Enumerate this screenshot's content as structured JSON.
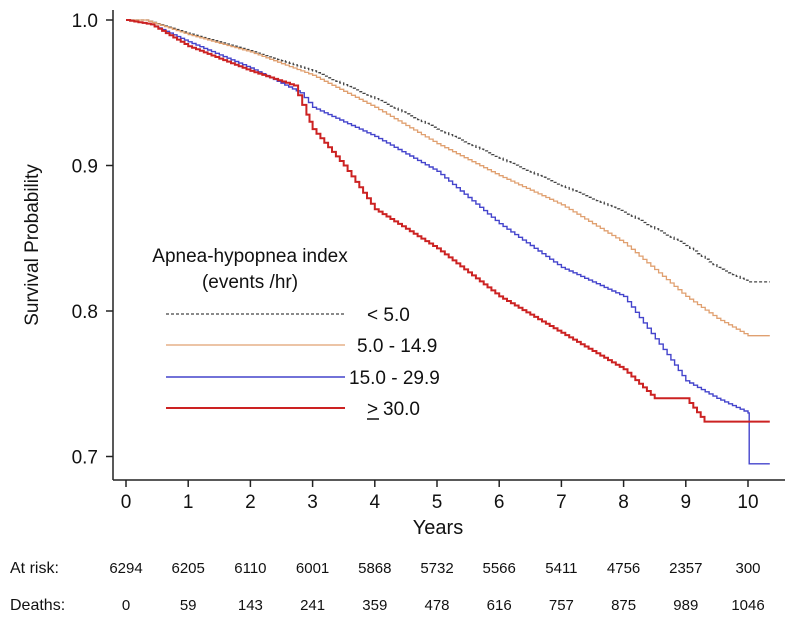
{
  "chart_data": {
    "type": "line",
    "xlabel": "Years",
    "ylabel": "Survival Probability",
    "xlim": [
      0,
      10.4
    ],
    "ylim": [
      0.7,
      1.0
    ],
    "x_ticks": [
      0,
      1,
      2,
      3,
      4,
      5,
      6,
      7,
      8,
      9,
      10
    ],
    "y_ticks": [
      {
        "value": 0.7,
        "label": "0.7"
      },
      {
        "value": 0.8,
        "label": "0.8"
      },
      {
        "value": 0.9,
        "label": "0.9"
      },
      {
        "value": 1.0,
        "label": "1.0"
      }
    ],
    "legend": {
      "title_line1": "Apnea-hypopnea index",
      "title_line2": "(events /hr)",
      "placement": "left"
    },
    "series": [
      {
        "name": "< 5.0",
        "color": "#444444",
        "style": "dashed",
        "points": [
          [
            0,
            1.0
          ],
          [
            0.3,
            1.0
          ],
          [
            1,
            0.991
          ],
          [
            2,
            0.979
          ],
          [
            3,
            0.965
          ],
          [
            4,
            0.946
          ],
          [
            5,
            0.925
          ],
          [
            6,
            0.905
          ],
          [
            7,
            0.886
          ],
          [
            8,
            0.868
          ],
          [
            9,
            0.845
          ],
          [
            9.5,
            0.83
          ],
          [
            10,
            0.82
          ],
          [
            10.35,
            0.82
          ]
        ]
      },
      {
        "name": "5.0 - 14.9",
        "color": "#e0a070",
        "style": "solid",
        "points": [
          [
            0,
            1.0
          ],
          [
            0.3,
            1.0
          ],
          [
            1,
            0.99
          ],
          [
            2,
            0.978
          ],
          [
            3,
            0.962
          ],
          [
            4,
            0.94
          ],
          [
            5,
            0.915
          ],
          [
            6,
            0.893
          ],
          [
            7,
            0.873
          ],
          [
            8,
            0.847
          ],
          [
            9,
            0.81
          ],
          [
            9.5,
            0.795
          ],
          [
            10,
            0.783
          ],
          [
            10.35,
            0.783
          ]
        ]
      },
      {
        "name": "15.0 - 29.9",
        "color": "#4444cc",
        "style": "solid",
        "points": [
          [
            0,
            1.0
          ],
          [
            0.4,
            0.997
          ],
          [
            1,
            0.985
          ],
          [
            2,
            0.967
          ],
          [
            2.8,
            0.95
          ],
          [
            3,
            0.94
          ],
          [
            4,
            0.92
          ],
          [
            5,
            0.896
          ],
          [
            6,
            0.86
          ],
          [
            7,
            0.83
          ],
          [
            8,
            0.81
          ],
          [
            8.7,
            0.77
          ],
          [
            9,
            0.752
          ],
          [
            9.5,
            0.74
          ],
          [
            10,
            0.73
          ],
          [
            10.02,
            0.695
          ],
          [
            10.35,
            0.695
          ]
        ]
      },
      {
        "name": "> 30.0",
        "color": "#cc2222",
        "style": "solid",
        "points": [
          [
            0,
            1.0
          ],
          [
            0.4,
            0.997
          ],
          [
            1,
            0.982
          ],
          [
            2,
            0.965
          ],
          [
            2.7,
            0.955
          ],
          [
            2.9,
            0.935
          ],
          [
            3,
            0.925
          ],
          [
            3.5,
            0.9
          ],
          [
            4,
            0.87
          ],
          [
            5,
            0.843
          ],
          [
            6,
            0.81
          ],
          [
            7,
            0.785
          ],
          [
            8,
            0.76
          ],
          [
            8.5,
            0.74
          ],
          [
            9,
            0.74
          ],
          [
            9.3,
            0.724
          ],
          [
            10.35,
            0.724
          ]
        ]
      }
    ],
    "risk_table": {
      "at_risk_label": "At risk:",
      "deaths_label": "Deaths:",
      "at_risk": [
        "6294",
        "6205",
        "6110",
        "6001",
        "5868",
        "5732",
        "5566",
        "5411",
        "4756",
        "2357",
        "300"
      ],
      "deaths": [
        "0",
        "59",
        "143",
        "241",
        "359",
        "478",
        "616",
        "757",
        "875",
        "989",
        "1046"
      ]
    }
  }
}
